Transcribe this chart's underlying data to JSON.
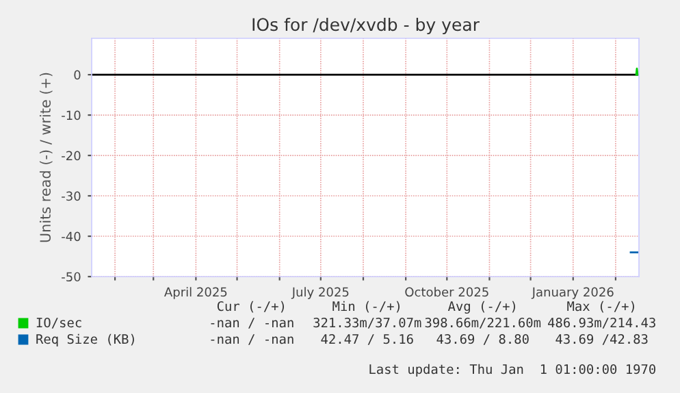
{
  "chart_data": {
    "type": "line",
    "title": "IOs for /dev/xvdb - by year",
    "ylabel": "Units read (-) / write (+)",
    "xlim": [
      "2025-01-15",
      "2026-02-18"
    ],
    "ylim": [
      -50,
      9
    ],
    "yticks": [
      -50,
      -40,
      -30,
      -20,
      -10,
      0
    ],
    "xticks": [
      {
        "value": "2025-02-01",
        "label": null
      },
      {
        "value": "2025-03-01",
        "label": null
      },
      {
        "value": "2025-04-01",
        "label": "April 2025"
      },
      {
        "value": "2025-05-01",
        "label": null
      },
      {
        "value": "2025-06-01",
        "label": null
      },
      {
        "value": "2025-07-01",
        "label": "July 2025"
      },
      {
        "value": "2025-08-01",
        "label": null
      },
      {
        "value": "2025-09-01",
        "label": null
      },
      {
        "value": "2025-10-01",
        "label": "October 2025"
      },
      {
        "value": "2025-11-01",
        "label": null
      },
      {
        "value": "2025-12-01",
        "label": null
      },
      {
        "value": "2026-01-01",
        "label": "January 2026"
      },
      {
        "value": "2026-02-01",
        "label": null
      }
    ],
    "grid": true,
    "legend": "bottom",
    "ref_lines": [
      {
        "axis": "y",
        "value": 0,
        "color": "#000000"
      }
    ],
    "series": [
      {
        "name": "IO/sec",
        "color": "#00cc00",
        "x": [
          "2026-02-16",
          "2026-02-16T12:00",
          "2026-02-17"
        ],
        "values": [
          0,
          1.5,
          0
        ]
      },
      {
        "name": "Req Size (KB)",
        "color": "#0066b3",
        "x": [
          "2026-02-12",
          "2026-02-17"
        ],
        "values": [
          -44,
          -44
        ]
      }
    ],
    "annotations": [
      "Cur (-/+)",
      "Min (-/+)",
      "Avg (-/+)",
      "Max (-/+)",
      "-nan / -nan",
      "321.33m/37.07m",
      "398.66m/221.60m",
      "486.93m/214.43",
      "-nan / -nan",
      "42.47 / 5.16",
      "43.69 / 8.80",
      "43.69 /42.83",
      "Last update: Thu Jan  1 01:00:00 1970"
    ]
  }
}
